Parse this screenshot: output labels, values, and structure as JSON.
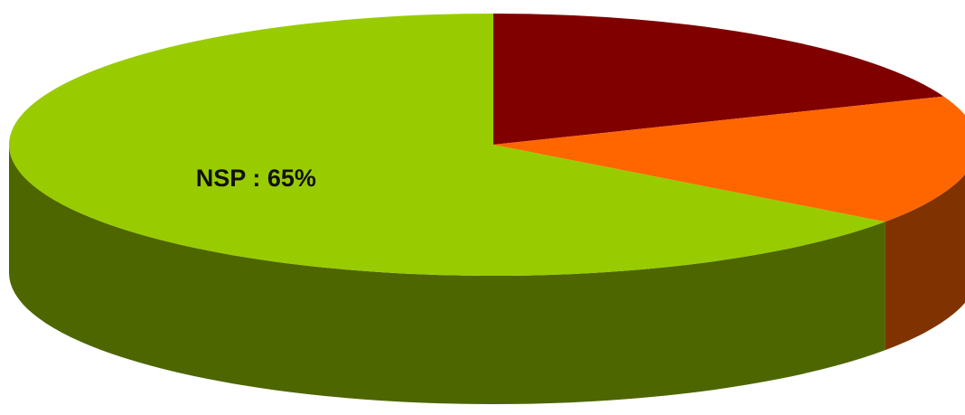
{
  "chart_data": {
    "type": "pie",
    "style": "3d",
    "title": "",
    "slices": [
      {
        "label": "NSP",
        "value": 65,
        "color": "#99cc00",
        "side_color": "#4d6600",
        "data_label": "NSP : 65%"
      },
      {
        "label": "",
        "value": 19,
        "color": "#800000",
        "side_color": "#5a0000",
        "data_label": ""
      },
      {
        "label": "",
        "value": 16,
        "color": "#ff6600",
        "side_color": "#803300",
        "data_label": ""
      }
    ],
    "legend": "none"
  }
}
